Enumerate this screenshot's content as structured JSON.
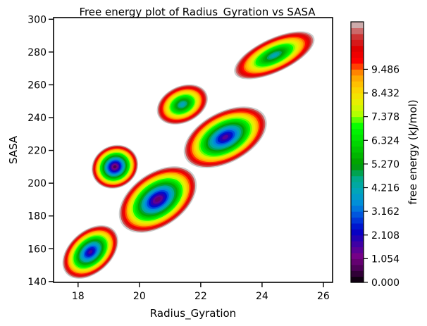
{
  "chart_data": {
    "type": "heatmap",
    "title": "Free energy plot of Radius_Gyration vs SASA",
    "xlabel": "Radius_Gyration",
    "ylabel": "SASA",
    "xlim": [
      17.2,
      26.3
    ],
    "ylim": [
      139.5,
      301
    ],
    "x_ticks": [
      18,
      20,
      22,
      24,
      26
    ],
    "y_ticks": [
      140,
      160,
      180,
      200,
      220,
      240,
      260,
      280,
      300
    ],
    "colorbar": {
      "label": "free energy (kJ/mol)",
      "range": [
        0,
        11.6
      ],
      "ticks": [
        "0.000",
        "1.054",
        "2.108",
        "3.162",
        "4.216",
        "5.270",
        "6.324",
        "7.378",
        "8.432",
        "9.486"
      ],
      "tick_values": [
        0,
        1.054,
        2.108,
        3.162,
        4.216,
        5.27,
        6.324,
        7.378,
        8.432,
        9.486
      ],
      "colormap": "nipy_spectral"
    },
    "basins": [
      {
        "x": 18.4,
        "y": 158,
        "min_energy": 1.6
      },
      {
        "x": 19.2,
        "y": 210,
        "min_energy": 0.6
      },
      {
        "x": 20.6,
        "y": 190,
        "min_energy": 0.9
      },
      {
        "x": 21.4,
        "y": 248,
        "min_energy": 4.0
      },
      {
        "x": 22.8,
        "y": 228,
        "min_energy": 1.5
      },
      {
        "x": 24.4,
        "y": 278,
        "min_energy": 4.1
      }
    ]
  }
}
